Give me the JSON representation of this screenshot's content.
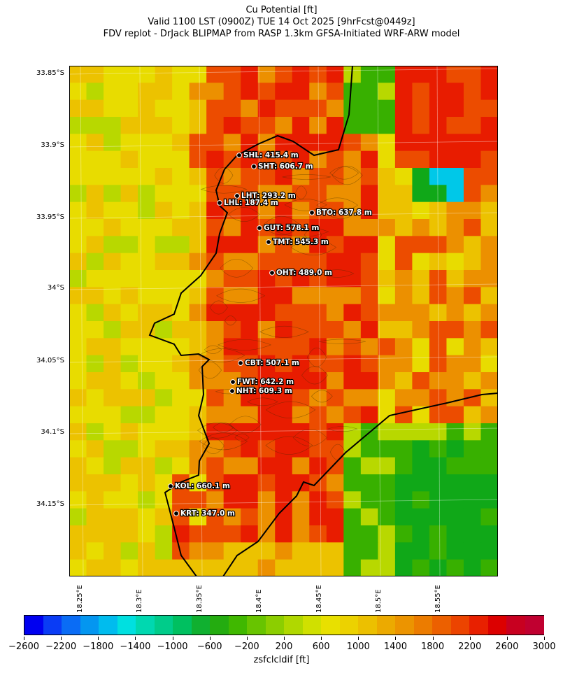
{
  "title": {
    "line1": "Cu Potential [ft]",
    "line2": "Valid 1100 LST (0900Z) TUE 14 Oct 2025 [9hrFcst@0449z]",
    "line3": "FDV replot - DrJack BLIPMAP from RASP 1.3km GFSA-Initiated WRF-ARW model"
  },
  "axes": {
    "y_ticks": [
      "33.85°S",
      "33.9°S",
      "33.95°S",
      "34°S",
      "34.05°S",
      "34.1°S",
      "34.15°S"
    ],
    "x_ticks": [
      "18.25°E",
      "18.3°E",
      "18.35°E",
      "18.4°E",
      "18.45°E",
      "18.5°E",
      "18.55°E"
    ]
  },
  "stations": [
    {
      "label": "SHL: 415.4 m"
    },
    {
      "label": "SHT: 606.7 m"
    },
    {
      "label": "LHT: 293.2 m"
    },
    {
      "label": "LHL: 187.4 m"
    },
    {
      "label": "BTO: 637.8 m"
    },
    {
      "label": "GUT: 578.1 m"
    },
    {
      "label": "TMT: 545.3 m"
    },
    {
      "label": "OHT: 489.0 m"
    },
    {
      "label": "CBT: 507.1 m"
    },
    {
      "label": "FWT: 642.2 m"
    },
    {
      "label": "NHT: 609.3 m"
    },
    {
      "label": "KOL: 660.1 m"
    },
    {
      "label": "KRT: 347.0 m"
    }
  ],
  "colorbar": {
    "label": "zsfclcldif [ft]",
    "tick_labels": [
      "−2600",
      "−2200",
      "−1800",
      "−1400",
      "−1000",
      "−600",
      "−200",
      "200",
      "600",
      "1000",
      "1400",
      "1800",
      "2200",
      "2600",
      "3000"
    ],
    "min": -2600,
    "max": 3000,
    "step": 200,
    "colors": [
      "#0000f0",
      "#0a3cf5",
      "#0a6cf5",
      "#0496f0",
      "#00bcee",
      "#00e0e0",
      "#00d8b0",
      "#00cc8a",
      "#00c060",
      "#10b030",
      "#24ac10",
      "#40b800",
      "#68c400",
      "#8cce00",
      "#b0d800",
      "#d0e000",
      "#e8e000",
      "#ecd200",
      "#ecc000",
      "#ecaa00",
      "#ec9400",
      "#ec7c00",
      "#ec6000",
      "#ec4400",
      "#e82000",
      "#dc0000",
      "#c80020",
      "#c00030"
    ]
  },
  "map_cell_colors": {
    "red": "#e81c00",
    "orange_red": "#ec4c00",
    "orange": "#ec9000",
    "yellow_orange": "#ecc200",
    "yellow": "#e8dc00",
    "lime": "#b8d800",
    "green": "#38b000",
    "green_dark": "#10a818",
    "cyan": "#00c8e8"
  }
}
